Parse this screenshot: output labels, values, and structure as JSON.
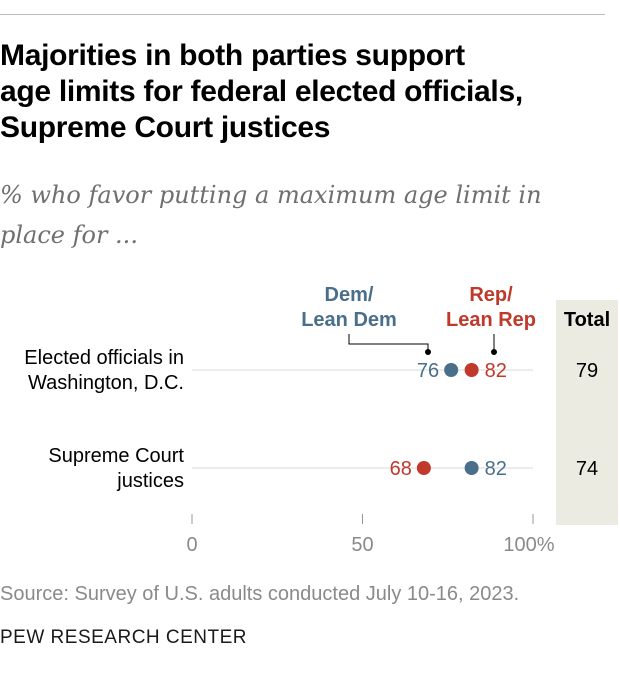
{
  "header": {
    "title": "Majorities in both parties support\nage limits for federal elected officials,\nSupreme Court justices",
    "subtitle": "% who favor putting a maximum age limit in\nplace for ..."
  },
  "colors": {
    "dem": "#4a6f8a",
    "rep": "#c0392b",
    "total_bg": "#ecebe2",
    "grid": "#d9d9d9"
  },
  "chart_data": {
    "type": "dot-plot",
    "title": "Majorities in both parties support age limits for federal elected officials, Supreme Court justices",
    "subtitle": "% who favor putting a maximum age limit in place for ...",
    "xlim": [
      0,
      100
    ],
    "ticks": [
      {
        "value": 0,
        "label": "0"
      },
      {
        "value": 50,
        "label": "50"
      },
      {
        "value": 100,
        "label": "100%"
      }
    ],
    "series": [
      {
        "key": "dem",
        "name_line1": "Dem/",
        "name_line2": "Lean Dem"
      },
      {
        "key": "rep",
        "name_line1": "Rep/",
        "name_line2": "Lean Rep"
      }
    ],
    "total_header": "Total",
    "rows": [
      {
        "label_line1": "Elected officials in",
        "label_line2": "Washington, D.C.",
        "dem": 76,
        "rep": 82,
        "total": 79
      },
      {
        "label_line1": "Supreme Court",
        "label_line2": "justices",
        "dem": 82,
        "rep": 68,
        "total": 74
      }
    ]
  },
  "footer": {
    "source": "Source: Survey of U.S. adults conducted July 10-16, 2023.",
    "org": "PEW RESEARCH CENTER"
  }
}
